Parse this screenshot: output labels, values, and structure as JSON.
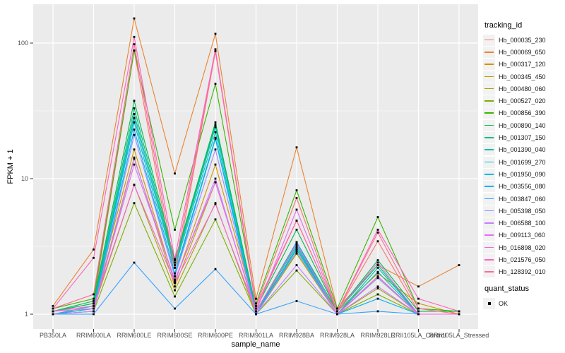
{
  "chart_data": {
    "type": "line",
    "title": "",
    "xlabel": "sample_name",
    "ylabel": "FPKM + 1",
    "y_scale": "log10",
    "ylim": [
      0.78,
      195
    ],
    "y_ticks": [
      1,
      10,
      100
    ],
    "y_tick_labels": [
      "1",
      "10",
      "100"
    ],
    "y_minor_ticks": [
      3.162,
      31.62
    ],
    "grid": "white major and minor on grey panel",
    "panel_bg": "#EBEBEB",
    "legend_position": "right",
    "legend_title": "tracking_id",
    "point_marker": "small black square",
    "quant_legend": {
      "title": "quant_status",
      "items": [
        "OK"
      ]
    },
    "categories": [
      "PB350LA",
      "RRIM600LA",
      "RRIM600LE",
      "RRIM600SE",
      "RRIM600PE",
      "RRIM901LA",
      "RRIM928BA",
      "RRIM928LA",
      "RRIM928LE",
      "RRII105LA_Control",
      "RRII105LA_Stressed"
    ],
    "series": [
      {
        "name": "Hb_000035_230",
        "color": "#F8766D",
        "values": [
          1.05,
          1.2,
          88,
          1.9,
          87,
          1.15,
          7.2,
          1.05,
          3.45,
          1.05,
          1.05
        ]
      },
      {
        "name": "Hb_000069_650",
        "color": "#EA8331",
        "values": [
          1.15,
          3.0,
          152,
          10.9,
          117,
          1.3,
          17,
          1.1,
          2.3,
          1.6,
          2.3
        ]
      },
      {
        "name": "Hb_000317_120",
        "color": "#D89000",
        "values": [
          1.05,
          1.2,
          16.4,
          1.7,
          12.7,
          1.05,
          3.0,
          1.05,
          2.0,
          1.2,
          1.0
        ]
      },
      {
        "name": "Hb_000345_450",
        "color": "#C09B00",
        "values": [
          1.0,
          1.1,
          14.3,
          1.6,
          9.4,
          1.05,
          2.8,
          1.0,
          1.85,
          1.0,
          1.0
        ]
      },
      {
        "name": "Hb_000480_060",
        "color": "#A3A500",
        "values": [
          1.0,
          1.1,
          9.0,
          1.5,
          6.6,
          1.0,
          2.8,
          1.0,
          1.55,
          1.0,
          1.0
        ]
      },
      {
        "name": "Hb_000527_020",
        "color": "#7CAE00",
        "values": [
          1.0,
          1.05,
          6.6,
          1.35,
          5.0,
          1.0,
          2.1,
          1.0,
          1.4,
          1.0,
          1.0
        ]
      },
      {
        "name": "Hb_000856_390",
        "color": "#39B600",
        "values": [
          1.1,
          1.3,
          88,
          4.2,
          50,
          1.2,
          8.2,
          1.1,
          5.2,
          1.1,
          1.05
        ]
      },
      {
        "name": "Hb_000890_140",
        "color": "#00BB4E",
        "values": [
          1.05,
          1.25,
          37.5,
          2.5,
          26,
          1.1,
          4.2,
          1.05,
          2.5,
          1.05,
          1.05
        ]
      },
      {
        "name": "Hb_001307_150",
        "color": "#00BF7D",
        "values": [
          1.05,
          1.2,
          33,
          2.4,
          25,
          1.05,
          3.4,
          1.05,
          2.3,
          1.0,
          1.0
        ]
      },
      {
        "name": "Hb_001390_040",
        "color": "#00C1A3",
        "values": [
          1.0,
          1.15,
          30,
          2.3,
          24,
          1.05,
          3.2,
          1.0,
          2.2,
          1.0,
          1.0
        ]
      },
      {
        "name": "Hb_001699_270",
        "color": "#00BFC4",
        "values": [
          1.0,
          1.1,
          28,
          2.2,
          22,
          1.0,
          3.1,
          1.0,
          2.05,
          1.0,
          1.0
        ]
      },
      {
        "name": "Hb_001950_090",
        "color": "#00BAE0",
        "values": [
          1.0,
          1.1,
          26,
          2.0,
          20,
          1.0,
          3.0,
          1.0,
          1.9,
          1.0,
          1.0
        ]
      },
      {
        "name": "Hb_003556_080",
        "color": "#00B0F6",
        "values": [
          1.0,
          1.05,
          23,
          1.9,
          19.6,
          1.0,
          3.4,
          1.0,
          1.3,
          1.0,
          1.0
        ]
      },
      {
        "name": "Hb_003847_060",
        "color": "#35A2FF",
        "values": [
          1.0,
          1.0,
          2.4,
          1.1,
          2.15,
          1.0,
          1.25,
          1.0,
          1.05,
          1.0,
          1.0
        ]
      },
      {
        "name": "Hb_005398_050",
        "color": "#9590FF",
        "values": [
          1.0,
          1.05,
          21,
          1.9,
          16.4,
          1.0,
          2.9,
          1.0,
          1.85,
          1.0,
          1.0
        ]
      },
      {
        "name": "Hb_006588_100",
        "color": "#C77CFF",
        "values": [
          1.0,
          1.05,
          14,
          1.75,
          10,
          1.0,
          2.3,
          1.0,
          1.6,
          1.0,
          1.0
        ]
      },
      {
        "name": "Hb_009113_060",
        "color": "#E76BF3",
        "values": [
          1.05,
          1.1,
          12.7,
          1.8,
          9.4,
          1.05,
          5.9,
          1.05,
          2.4,
          1.0,
          1.0
        ]
      },
      {
        "name": "Hb_016898_020",
        "color": "#FA62DB",
        "values": [
          1.05,
          1.15,
          9.0,
          1.7,
          6.5,
          1.05,
          3.3,
          1.0,
          1.9,
          1.0,
          1.0
        ]
      },
      {
        "name": "Hb_021576_050",
        "color": "#FF62BC",
        "values": [
          1.1,
          2.6,
          111,
          2.55,
          90,
          1.15,
          4.9,
          1.05,
          4.2,
          1.3,
          1.05
        ]
      },
      {
        "name": "Hb_128392_010",
        "color": "#FF6A98",
        "values": [
          1.1,
          1.4,
          98,
          2.2,
          87,
          1.1,
          4.9,
          1.05,
          4.0,
          1.1,
          1.0
        ]
      }
    ]
  },
  "style": {
    "tick_label_color": "#4D4D4D",
    "tick_mark_color": "#333333",
    "gridline_color": "#FFFFFF",
    "legend_key_bg": "#F2F2F2",
    "point_color": "#000000"
  }
}
